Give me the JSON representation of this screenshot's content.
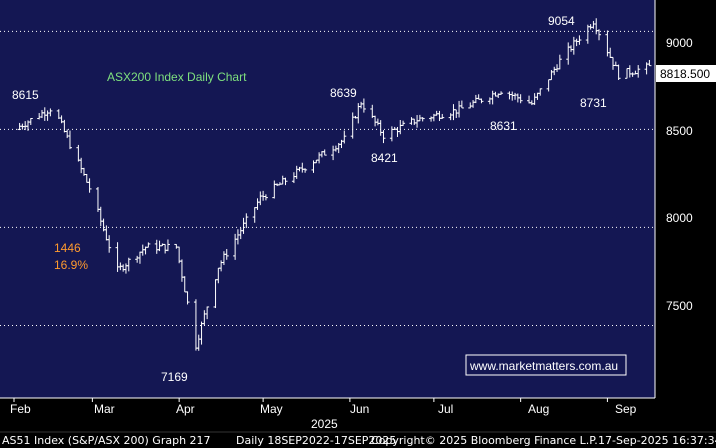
{
  "chart_data": {
    "type": "ohlc",
    "title": "ASX200 Index Daily Chart",
    "xlabel": "2025",
    "ylabel": "",
    "ylim": [
      7130,
      9160
    ],
    "y_ticks": [
      "7500",
      "8000",
      "8500",
      "9000"
    ],
    "x_ticks": [
      "Feb",
      "Mar",
      "Apr",
      "May",
      "Jun",
      "Jul",
      "Aug",
      "Sep"
    ],
    "year_label": "2025",
    "last_price": "8818.500",
    "watermark": "www.marketmatters.com.au",
    "annotations": [
      "8615",
      "8639",
      "8421",
      "8631",
      "9054",
      "8731",
      "7169"
    ],
    "drawdown": {
      "points": "1446",
      "percent": "16.9%"
    },
    "series": [
      {
        "x": [
          "2025-02-01",
          "2025-02-15",
          "2025-02-28",
          "2025-03-10",
          "2025-03-20",
          "2025-03-31",
          "2025-04-07",
          "2025-04-15",
          "2025-04-30",
          "2025-05-15",
          "2025-05-30",
          "2025-06-05",
          "2025-06-13",
          "2025-06-25",
          "2025-07-10",
          "2025-07-25",
          "2025-08-05",
          "2025-08-15",
          "2025-08-27",
          "2025-09-05",
          "2025-09-16"
        ],
        "values": [
          8500,
          8615,
          8200,
          7780,
          7900,
          7900,
          7400,
          7800,
          8150,
          8300,
          8450,
          8639,
          8470,
          8550,
          8600,
          8700,
          8631,
          8850,
          9054,
          8780,
          8818.5
        ]
      }
    ]
  },
  "footer": {
    "left": "AS51 Index (S&P/ASX 200) Graph 217",
    "range": "Daily 18SEP2022-17SEP2025",
    "copyright": "Copyright© 2025 Bloomberg Finance L.P.",
    "timestamp": "17-Sep-2025 16:37:34"
  },
  "colors": {
    "background": "#141753",
    "bars": "#ffffff",
    "grid": "#ffffff",
    "title": "#7ee07e",
    "drawdown": "#ff9a2e",
    "price_tag": "#ffffff"
  }
}
